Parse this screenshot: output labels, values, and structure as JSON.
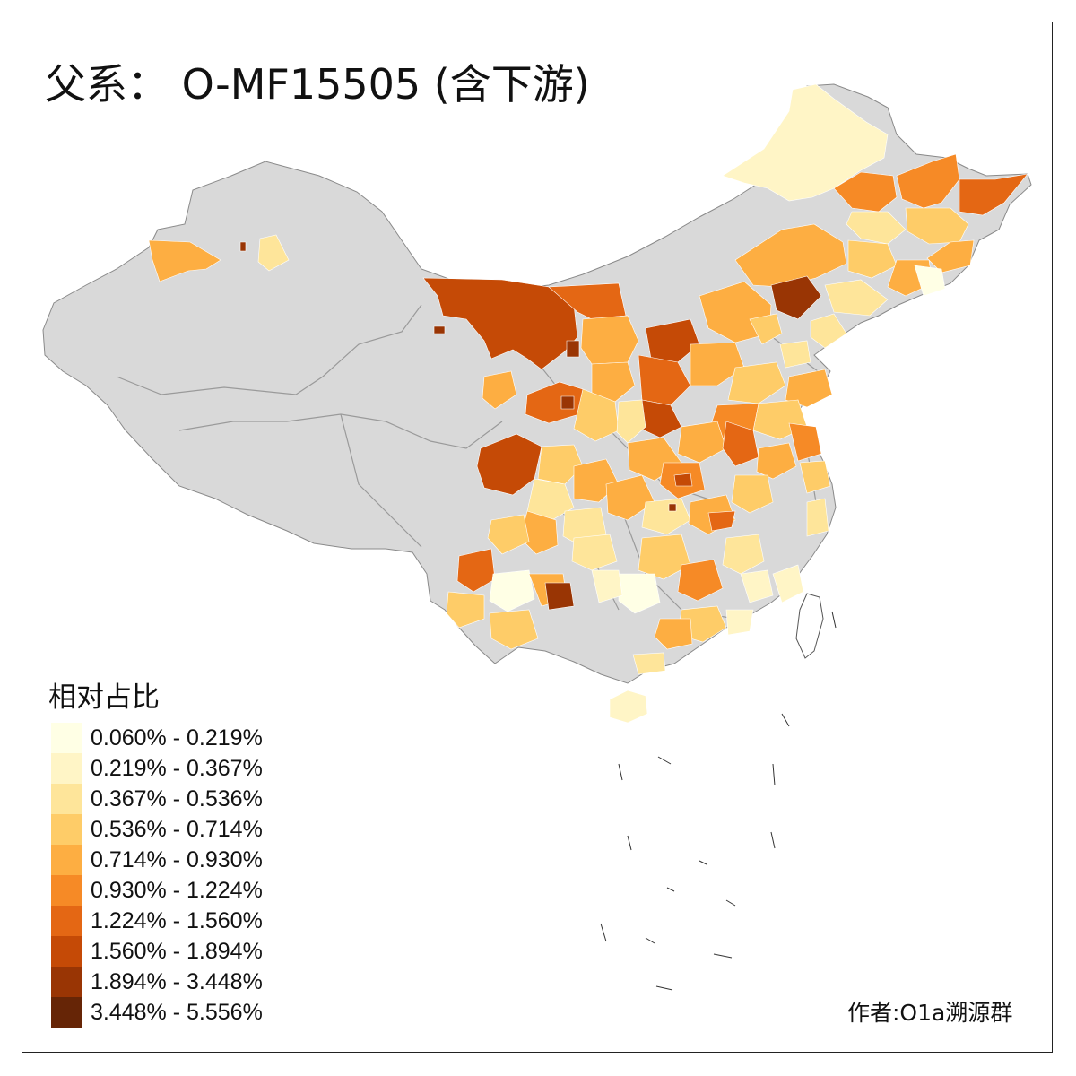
{
  "title": "父系： O-MF15505 (含下游)",
  "legend": {
    "title": "相对占比",
    "items": [
      {
        "label": "0.060% - 0.219%",
        "color": "#FFFFE5"
      },
      {
        "label": "0.219% - 0.367%",
        "color": "#FFF5C6"
      },
      {
        "label": "0.367% - 0.536%",
        "color": "#FEE59A"
      },
      {
        "label": "0.536% - 0.714%",
        "color": "#FECC68"
      },
      {
        "label": "0.714% - 0.930%",
        "color": "#FDAE42"
      },
      {
        "label": "0.930% - 1.224%",
        "color": "#F68A26"
      },
      {
        "label": "1.224% - 1.560%",
        "color": "#E46714"
      },
      {
        "label": "1.560% - 1.894%",
        "color": "#C54A06"
      },
      {
        "label": "1.894% - 3.448%",
        "color": "#993504"
      },
      {
        "label": "3.448% - 5.556%",
        "color": "#662506"
      }
    ]
  },
  "no_data_color": "#D9D9D9",
  "credit": "作者:O1a溯源群"
}
